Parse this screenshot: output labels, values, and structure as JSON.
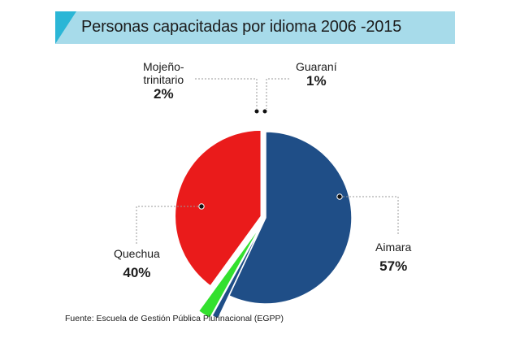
{
  "chart_data": {
    "type": "pie",
    "title": "Personas capacitadas por idioma 2006 -2015",
    "slices": [
      {
        "name": "Aimara",
        "line2": "",
        "value": 57,
        "label": "57%",
        "color": "#1f4e87"
      },
      {
        "name": "Guaraní",
        "line2": "",
        "value": 1,
        "label": "1%",
        "color": "#1f4e87"
      },
      {
        "name": "Mojeño-",
        "line2": "trinitario",
        "value": 2,
        "label": "2%",
        "color": "#33e02e"
      },
      {
        "name": "Quechua",
        "line2": "",
        "value": 40,
        "label": "40%",
        "color": "#ea1b1b"
      }
    ],
    "source": "Fuente: Escuela de Gestión Pública Plurinacional (EGPP)"
  },
  "colors": {
    "title_bar": "#a7dbea",
    "title_accent": "#2bb6d6"
  }
}
